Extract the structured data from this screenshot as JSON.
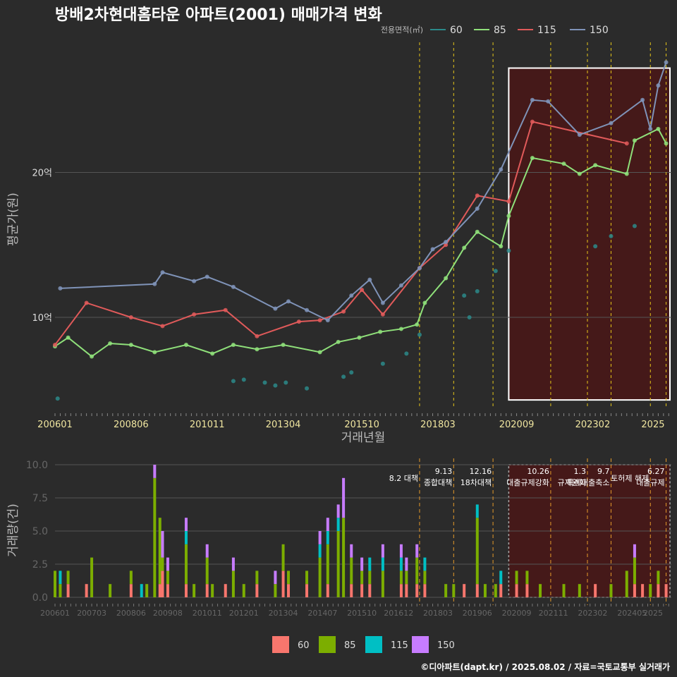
{
  "title": "방배2차현대홈타운 아파트(2001) 매매가격 변화",
  "credit": "©디아파트(dapt.kr) / 2025.08.02 / 자료=국토교통부 실거래가",
  "colors": {
    "bg": "#2b2b2b",
    "grid": "#555555",
    "policy_line": "#e6c619",
    "policy_line_lower": "#e59a2b",
    "highlight_fill": "#4a1616",
    "s60": "#2b8a8a",
    "s85": "#8fe07a",
    "s115": "#e05a5a",
    "s150": "#7f93b8",
    "b60": "#f8766d",
    "b85": "#7cae00",
    "b115": "#00bfc4",
    "b150": "#c77cff"
  },
  "chart_data": [
    {
      "type": "line",
      "legend_title": "전용면적(㎡)",
      "legend_position": "top-right",
      "xlabel": "거래년월",
      "ylabel": "평균가(원)",
      "x_ticks": [
        "200601",
        "200806",
        "201011",
        "201304",
        "201510",
        "201803",
        "202009",
        "202302",
        "2025"
      ],
      "y_ticks": [
        {
          "value": 10,
          "label": "10억"
        },
        {
          "value": 20,
          "label": "20억"
        }
      ],
      "ylim": [
        4,
        28
      ],
      "xlim": [
        "2006-01",
        "2025-08"
      ],
      "grid": true,
      "highlight": {
        "from": "2020-06",
        "to": "2025-08",
        "ymin": 4.3,
        "ymax": 27.2
      },
      "policy_dates": [
        "2017-08",
        "2018-09",
        "2019-12",
        "2021-10",
        "2022-12",
        "2023-09",
        "2024-12",
        "2025-06"
      ],
      "series": [
        {
          "name": "60",
          "color_key": "s60",
          "points": [
            [
              "2006-02",
              4.4
            ],
            [
              "2011-09",
              5.6
            ],
            [
              "2012-01",
              5.7
            ],
            [
              "2012-09",
              5.5
            ],
            [
              "2013-01",
              5.3
            ],
            [
              "2013-05",
              5.5
            ],
            [
              "2014-01",
              5.1
            ],
            [
              "2015-03",
              5.9
            ],
            [
              "2015-06",
              6.2
            ],
            [
              "2016-06",
              6.8
            ],
            [
              "2017-03",
              7.5
            ],
            [
              "2017-08",
              8.8
            ],
            [
              "2019-01",
              11.5
            ],
            [
              "2019-03",
              10.0
            ],
            [
              "2019-06",
              11.8
            ],
            [
              "2020-01",
              13.2
            ],
            [
              "2020-06",
              14.6
            ],
            [
              "2023-03",
              14.9
            ],
            [
              "2023-09",
              15.6
            ],
            [
              "2024-06",
              16.3
            ]
          ]
        },
        {
          "name": "85",
          "color_key": "s85",
          "points": [
            [
              "2006-01",
              8.0
            ],
            [
              "2006-06",
              8.6
            ],
            [
              "2007-03",
              7.3
            ],
            [
              "2007-10",
              8.2
            ],
            [
              "2008-06",
              8.1
            ],
            [
              "2009-03",
              7.6
            ],
            [
              "2010-03",
              8.1
            ],
            [
              "2011-01",
              7.5
            ],
            [
              "2011-09",
              8.1
            ],
            [
              "2012-06",
              7.8
            ],
            [
              "2013-04",
              8.1
            ],
            [
              "2014-06",
              7.6
            ],
            [
              "2015-01",
              8.3
            ],
            [
              "2015-09",
              8.6
            ],
            [
              "2016-05",
              9.0
            ],
            [
              "2017-01",
              9.2
            ],
            [
              "2017-07",
              9.5
            ],
            [
              "2017-10",
              11.0
            ],
            [
              "2018-06",
              12.7
            ],
            [
              "2019-01",
              14.8
            ],
            [
              "2019-06",
              15.9
            ],
            [
              "2020-03",
              14.9
            ],
            [
              "2020-06",
              17.0
            ],
            [
              "2021-03",
              21.0
            ],
            [
              "2022-03",
              20.6
            ],
            [
              "2022-09",
              19.9
            ],
            [
              "2023-03",
              20.5
            ],
            [
              "2024-03",
              19.9
            ],
            [
              "2024-06",
              22.2
            ],
            [
              "2025-03",
              23.0
            ],
            [
              "2025-06",
              22.0
            ]
          ]
        },
        {
          "name": "115",
          "color_key": "s115",
          "points": [
            [
              "2006-01",
              8.1
            ],
            [
              "2007-01",
              11.0
            ],
            [
              "2008-06",
              10.0
            ],
            [
              "2009-06",
              9.4
            ],
            [
              "2010-06",
              10.2
            ],
            [
              "2011-06",
              10.5
            ],
            [
              "2012-06",
              8.7
            ],
            [
              "2013-10",
              9.7
            ],
            [
              "2014-06",
              9.8
            ],
            [
              "2015-03",
              10.4
            ],
            [
              "2015-10",
              11.9
            ],
            [
              "2016-06",
              10.2
            ],
            [
              "2017-08",
              13.4
            ],
            [
              "2018-06",
              15.0
            ],
            [
              "2019-06",
              18.4
            ],
            [
              "2020-06",
              18.0
            ],
            [
              "2021-03",
              23.5
            ],
            [
              "2024-03",
              22.0
            ]
          ]
        },
        {
          "name": "150",
          "color_key": "s150",
          "points": [
            [
              "2006-03",
              12.0
            ],
            [
              "2009-03",
              12.3
            ],
            [
              "2009-06",
              13.1
            ],
            [
              "2010-06",
              12.5
            ],
            [
              "2010-11",
              12.8
            ],
            [
              "2011-09",
              12.1
            ],
            [
              "2013-01",
              10.6
            ],
            [
              "2013-06",
              11.1
            ],
            [
              "2014-01",
              10.5
            ],
            [
              "2014-09",
              9.8
            ],
            [
              "2015-06",
              11.5
            ],
            [
              "2016-01",
              12.6
            ],
            [
              "2016-06",
              11.0
            ],
            [
              "2017-01",
              12.2
            ],
            [
              "2017-08",
              13.4
            ],
            [
              "2018-01",
              14.7
            ],
            [
              "2018-06",
              15.2
            ],
            [
              "2019-06",
              17.5
            ],
            [
              "2020-03",
              20.2
            ],
            [
              "2021-03",
              25.0
            ],
            [
              "2021-09",
              24.9
            ],
            [
              "2022-09",
              22.6
            ],
            [
              "2023-09",
              23.4
            ],
            [
              "2024-09",
              25.0
            ],
            [
              "2024-12",
              23.0
            ],
            [
              "2025-03",
              26.0
            ],
            [
              "2025-06",
              27.6
            ]
          ]
        }
      ]
    },
    {
      "type": "bar",
      "stacked": true,
      "ylabel": "거래량(건)",
      "ylim": [
        0,
        10
      ],
      "y_ticks": [
        "0.0",
        "2.5",
        "5.0",
        "7.5",
        "10.0"
      ],
      "x_ticks": [
        "200601",
        "200703",
        "200806",
        "200908",
        "201011",
        "201201",
        "201304",
        "201407",
        "201510",
        "201612",
        "201803",
        "201906",
        "202009",
        "202111",
        "202302",
        "202405",
        "2025"
      ],
      "legend_position": "bottom",
      "legend_items": [
        "60",
        "85",
        "115",
        "150"
      ],
      "highlight": {
        "from": "2020-06",
        "to": "2025-08"
      },
      "policy_annotations": [
        {
          "date": "2017-08",
          "label": "8.2 대책"
        },
        {
          "date": "2018-09",
          "label": "9.13\n종합대책"
        },
        {
          "date": "2019-12",
          "label": "12.16\n18차대책"
        },
        {
          "date": "2021-10",
          "label": "10.26\n대출규제강화"
        },
        {
          "date": "2022-12",
          "label": "1.3\n규제완화"
        },
        {
          "date": "2023-09",
          "label": "9.7\n특례대출축소"
        },
        {
          "date": "2024-12",
          "label": "토허제 해제"
        },
        {
          "date": "2025-06",
          "label": "6.27\n대출규제"
        }
      ],
      "bars": [
        {
          "month": "2006-01",
          "v": [
            0,
            2,
            0,
            0
          ]
        },
        {
          "month": "2006-03",
          "v": [
            0,
            1,
            1,
            0
          ]
        },
        {
          "month": "2006-06",
          "v": [
            1,
            1,
            0,
            0
          ]
        },
        {
          "month": "2007-01",
          "v": [
            1,
            0,
            0,
            0
          ]
        },
        {
          "month": "2007-03",
          "v": [
            0,
            3,
            0,
            0
          ]
        },
        {
          "month": "2007-10",
          "v": [
            0,
            1,
            0,
            0
          ]
        },
        {
          "month": "2008-06",
          "v": [
            1,
            1,
            0,
            0
          ]
        },
        {
          "month": "2008-10",
          "v": [
            0,
            0,
            1,
            0
          ]
        },
        {
          "month": "2008-12",
          "v": [
            0,
            1,
            0,
            0
          ]
        },
        {
          "month": "2009-03",
          "v": [
            0,
            9,
            0,
            1
          ]
        },
        {
          "month": "2009-05",
          "v": [
            1,
            5,
            0,
            0
          ]
        },
        {
          "month": "2009-06",
          "v": [
            2,
            1,
            0,
            2
          ]
        },
        {
          "month": "2009-08",
          "v": [
            1,
            1,
            0,
            1
          ]
        },
        {
          "month": "2010-03",
          "v": [
            1,
            3,
            1,
            1
          ]
        },
        {
          "month": "2010-06",
          "v": [
            0,
            1,
            0,
            0
          ]
        },
        {
          "month": "2010-11",
          "v": [
            1,
            2,
            0,
            1
          ]
        },
        {
          "month": "2011-01",
          "v": [
            0,
            1,
            0,
            0
          ]
        },
        {
          "month": "2011-06",
          "v": [
            1,
            0,
            0,
            0
          ]
        },
        {
          "month": "2011-09",
          "v": [
            0,
            2,
            0,
            1
          ]
        },
        {
          "month": "2012-01",
          "v": [
            0,
            1,
            0,
            0
          ]
        },
        {
          "month": "2012-06",
          "v": [
            1,
            1,
            0,
            0
          ]
        },
        {
          "month": "2013-01",
          "v": [
            0,
            1,
            0,
            1
          ]
        },
        {
          "month": "2013-04",
          "v": [
            2,
            2,
            0,
            0
          ]
        },
        {
          "month": "2013-06",
          "v": [
            1,
            1,
            0,
            0
          ]
        },
        {
          "month": "2014-01",
          "v": [
            1,
            1,
            0,
            0
          ]
        },
        {
          "month": "2014-06",
          "v": [
            0,
            3,
            1,
            1
          ]
        },
        {
          "month": "2014-09",
          "v": [
            1,
            3,
            1,
            1
          ]
        },
        {
          "month": "2015-01",
          "v": [
            0,
            5,
            1,
            1
          ]
        },
        {
          "month": "2015-03",
          "v": [
            0,
            6,
            0,
            3
          ]
        },
        {
          "month": "2015-06",
          "v": [
            1,
            2,
            0,
            1
          ]
        },
        {
          "month": "2015-10",
          "v": [
            1,
            1,
            0,
            1
          ]
        },
        {
          "month": "2016-01",
          "v": [
            1,
            1,
            1,
            0
          ]
        },
        {
          "month": "2016-06",
          "v": [
            0,
            2,
            1,
            1
          ]
        },
        {
          "month": "2017-01",
          "v": [
            1,
            1,
            1,
            1
          ]
        },
        {
          "month": "2017-03",
          "v": [
            1,
            1,
            0,
            1
          ]
        },
        {
          "month": "2017-07",
          "v": [
            1,
            2,
            0,
            1
          ]
        },
        {
          "month": "2017-10",
          "v": [
            1,
            1,
            1,
            0
          ]
        },
        {
          "month": "2018-06",
          "v": [
            0,
            1,
            0,
            0
          ]
        },
        {
          "month": "2018-09",
          "v": [
            0,
            1,
            0,
            0
          ]
        },
        {
          "month": "2019-01",
          "v": [
            1,
            0,
            0,
            0
          ]
        },
        {
          "month": "2019-06",
          "v": [
            1,
            5,
            1,
            0
          ]
        },
        {
          "month": "2019-09",
          "v": [
            0,
            1,
            0,
            0
          ]
        },
        {
          "month": "2020-01",
          "v": [
            0,
            1,
            0,
            0
          ]
        },
        {
          "month": "2020-03",
          "v": [
            1,
            0,
            1,
            0
          ]
        },
        {
          "month": "2020-09",
          "v": [
            1,
            1,
            0,
            0
          ]
        },
        {
          "month": "2021-01",
          "v": [
            1,
            1,
            0,
            0
          ]
        },
        {
          "month": "2021-06",
          "v": [
            0,
            1,
            0,
            0
          ]
        },
        {
          "month": "2022-03",
          "v": [
            0,
            1,
            0,
            0
          ]
        },
        {
          "month": "2022-09",
          "v": [
            0,
            1,
            0,
            0
          ]
        },
        {
          "month": "2023-03",
          "v": [
            1,
            0,
            0,
            0
          ]
        },
        {
          "month": "2023-09",
          "v": [
            0,
            1,
            0,
            0
          ]
        },
        {
          "month": "2024-03",
          "v": [
            0,
            2,
            0,
            0
          ]
        },
        {
          "month": "2024-06",
          "v": [
            1,
            2,
            0,
            1
          ]
        },
        {
          "month": "2024-09",
          "v": [
            1,
            0,
            0,
            0
          ]
        },
        {
          "month": "2024-12",
          "v": [
            0,
            1,
            0,
            0
          ]
        },
        {
          "month": "2025-03",
          "v": [
            1,
            1,
            0,
            0
          ]
        },
        {
          "month": "2025-06",
          "v": [
            1,
            0,
            0,
            0
          ]
        }
      ]
    }
  ]
}
